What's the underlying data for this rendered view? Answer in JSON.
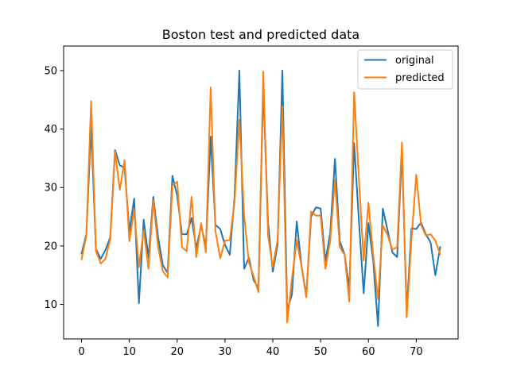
{
  "chart_data": {
    "type": "line",
    "title": "Boston test and predicted data",
    "xlabel": "",
    "ylabel": "",
    "xlim": [
      -3.75,
      78.75
    ],
    "ylim": [
      4.1,
      54.2
    ],
    "x_ticks": [
      0,
      10,
      20,
      30,
      40,
      50,
      60,
      70
    ],
    "y_ticks": [
      10,
      20,
      30,
      40,
      50
    ],
    "grid": false,
    "legend_position": "top-right",
    "x": [
      0,
      1,
      2,
      3,
      4,
      5,
      6,
      7,
      8,
      9,
      10,
      11,
      12,
      13,
      14,
      15,
      16,
      17,
      18,
      19,
      20,
      21,
      22,
      23,
      24,
      25,
      26,
      27,
      28,
      29,
      30,
      31,
      32,
      33,
      34,
      35,
      36,
      37,
      38,
      39,
      40,
      41,
      42,
      43,
      44,
      45,
      46,
      47,
      48,
      49,
      50,
      51,
      52,
      53,
      54,
      55,
      56,
      57,
      58,
      59,
      60,
      61,
      62,
      63,
      64,
      65,
      66,
      67,
      68,
      69,
      70,
      71,
      72,
      73,
      74,
      75
    ],
    "series": [
      {
        "name": "original",
        "color": "#1f77b4",
        "values": [
          18.7,
          22.0,
          40.5,
          19.5,
          17.8,
          19.3,
          21.5,
          36.4,
          33.8,
          33.4,
          22.5,
          28.1,
          10.2,
          24.5,
          18.0,
          28.4,
          21.6,
          16.7,
          15.4,
          32.0,
          28.6,
          22.0,
          22.0,
          24.8,
          19.6,
          23.5,
          19.9,
          38.7,
          23.6,
          22.9,
          20.2,
          18.5,
          28.4,
          50.0,
          16.1,
          18.0,
          14.1,
          12.9,
          47.0,
          24.0,
          15.6,
          20.2,
          50.0,
          9.0,
          11.7,
          24.2,
          16.6,
          11.5,
          25.0,
          26.6,
          26.4,
          17.4,
          22.2,
          34.9,
          20.8,
          18.6,
          12.7,
          37.6,
          24.4,
          11.9,
          23.9,
          17.4,
          6.3,
          26.4,
          22.7,
          18.9,
          18.1,
          36.2,
          8.8,
          23.0,
          22.9,
          24.0,
          22.0,
          20.6,
          15.0,
          19.8
        ]
      },
      {
        "name": "predicted",
        "color": "#ff7f0e",
        "values": [
          17.7,
          21.8,
          44.8,
          19.2,
          17.0,
          17.8,
          21.2,
          36.1,
          29.6,
          34.7,
          20.8,
          26.2,
          16.4,
          22.7,
          16.1,
          27.8,
          19.9,
          15.7,
          14.6,
          30.3,
          31.0,
          19.8,
          19.1,
          28.4,
          18.1,
          23.9,
          18.9,
          47.1,
          22.6,
          17.9,
          20.9,
          21.0,
          27.5,
          41.6,
          25.2,
          17.2,
          14.8,
          12.1,
          49.8,
          21.8,
          16.4,
          21.1,
          43.9,
          6.9,
          14.4,
          21.0,
          16.5,
          11.2,
          25.9,
          25.2,
          25.2,
          16.1,
          20.9,
          31.3,
          19.8,
          18.5,
          10.5,
          46.3,
          31.5,
          17.5,
          27.4,
          18.5,
          10.9,
          23.5,
          21.9,
          19.4,
          19.8,
          37.7,
          7.8,
          21.2,
          32.2,
          23.6,
          21.8,
          22.0,
          20.9,
          18.6
        ]
      }
    ]
  }
}
